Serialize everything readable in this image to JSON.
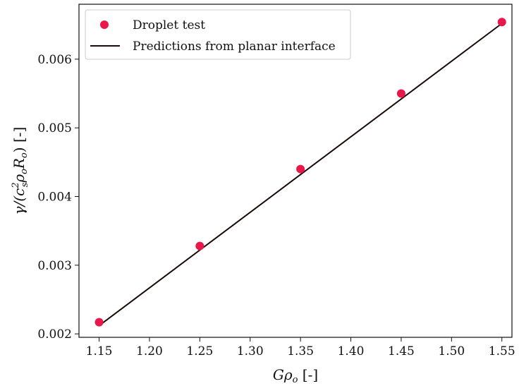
{
  "chart_data": {
    "type": "scatter",
    "xlabel": "Gρo [-]",
    "ylabel": "γ/(c²sρoRo) [-]",
    "xlim": [
      1.13,
      1.56
    ],
    "ylim": [
      0.00195,
      0.0068
    ],
    "x_ticks": [
      "1.15",
      "1.20",
      "1.25",
      "1.30",
      "1.35",
      "1.40",
      "1.45",
      "1.50",
      "1.55"
    ],
    "y_ticks": [
      "0.002",
      "0.003",
      "0.004",
      "0.005",
      "0.006"
    ],
    "grid": false,
    "legend_position": "top-left",
    "series": [
      {
        "name": "Droplet test",
        "kind": "scatter",
        "color": "#e8194a",
        "x": [
          1.15,
          1.25,
          1.35,
          1.45,
          1.55
        ],
        "y": [
          0.00217,
          0.00328,
          0.0044,
          0.0055,
          0.00654
        ]
      },
      {
        "name": "Predictions from planar interface",
        "kind": "line",
        "color": "#1a0a0a",
        "x": [
          1.15,
          1.55
        ],
        "y": [
          0.00212,
          0.00652
        ]
      }
    ]
  }
}
